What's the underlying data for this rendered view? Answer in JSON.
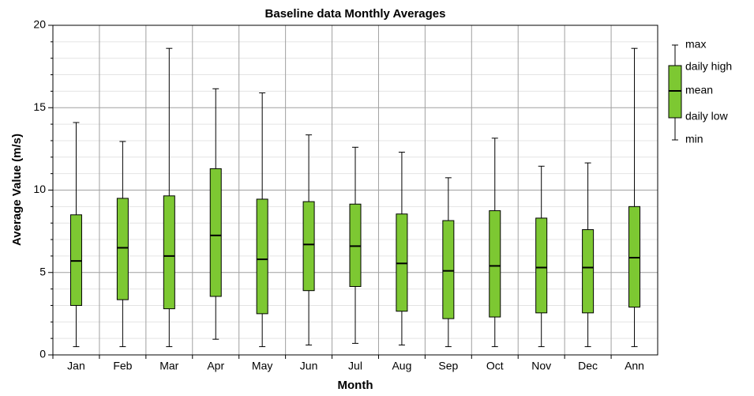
{
  "chart_data": {
    "type": "box",
    "title": "Baseline data Monthly Averages",
    "x_label": "Month",
    "y_label": "Average Value (m/s)",
    "categories": [
      "Jan",
      "Feb",
      "Mar",
      "Apr",
      "May",
      "Jun",
      "Jul",
      "Aug",
      "Sep",
      "Oct",
      "Nov",
      "Dec",
      "Ann"
    ],
    "series": [
      {
        "name": "max",
        "values": [
          14.1,
          12.95,
          18.6,
          16.15,
          15.9,
          13.35,
          12.6,
          12.3,
          10.75,
          13.15,
          11.45,
          11.65,
          18.6
        ]
      },
      {
        "name": "daily high",
        "values": [
          8.5,
          9.5,
          9.65,
          11.3,
          9.45,
          9.3,
          9.15,
          8.55,
          8.15,
          8.75,
          8.3,
          7.6,
          9.0
        ]
      },
      {
        "name": "mean",
        "values": [
          5.7,
          6.5,
          6.0,
          7.25,
          5.8,
          6.7,
          6.6,
          5.55,
          5.1,
          5.4,
          5.3,
          5.3,
          5.9
        ]
      },
      {
        "name": "daily low",
        "values": [
          3.0,
          3.35,
          2.8,
          3.55,
          2.5,
          3.9,
          4.15,
          2.65,
          2.2,
          2.3,
          2.55,
          2.55,
          2.9
        ]
      },
      {
        "name": "min",
        "values": [
          0.5,
          0.5,
          0.5,
          0.95,
          0.5,
          0.6,
          0.7,
          0.6,
          0.5,
          0.5,
          0.5,
          0.5,
          0.5
        ]
      }
    ],
    "color": "#7dc832",
    "ylim": [
      0,
      20
    ],
    "yticks": [
      0,
      5,
      10,
      15,
      20
    ],
    "minor_yticks": [
      1,
      2,
      3,
      4,
      6,
      7,
      8,
      9,
      11,
      12,
      13,
      14,
      16,
      17,
      18,
      19
    ],
    "grid": true,
    "legend": "right"
  }
}
